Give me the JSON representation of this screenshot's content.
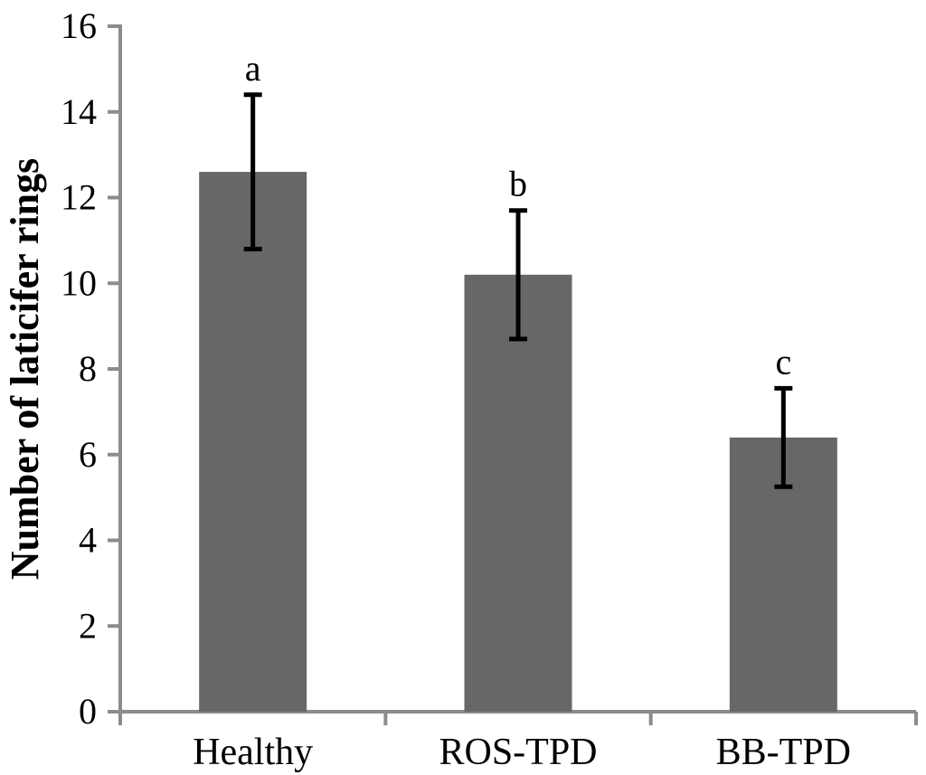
{
  "figure": {
    "background": "#ffffff"
  },
  "chart_data": {
    "type": "bar",
    "title": "",
    "categories": [
      "Healthy",
      "ROS-TPD",
      "BB-TPD"
    ],
    "values": [
      12.6,
      10.2,
      6.4
    ],
    "error_bars": [
      1.8,
      1.5,
      1.15
    ],
    "significance_letters": [
      "a",
      "b",
      "c"
    ],
    "xlabel": "",
    "ylabel": "Number of laticifer rings",
    "ylim": [
      0,
      16
    ],
    "yticks": [
      0,
      2,
      4,
      6,
      8,
      10,
      12,
      14,
      16
    ],
    "grid": false,
    "legend": "none",
    "bar_color": "#676767",
    "axis_color": "#8c8c8c",
    "error_bar_color": "#000000",
    "label_color": "#000000"
  }
}
